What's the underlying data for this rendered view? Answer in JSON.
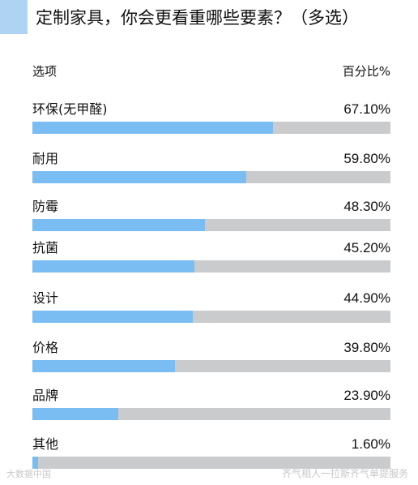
{
  "chart_data": {
    "type": "bar",
    "orientation": "horizontal",
    "title": "定制家具，你会更看重哪些要素？（多选）",
    "column_headers": {
      "label": "选项",
      "value": "百分比%"
    },
    "categories": [
      "环保(无甲醛)",
      "耐用",
      "防霉",
      "抗菌",
      "设计",
      "价格",
      "品牌",
      "其他"
    ],
    "values": [
      67.1,
      59.8,
      48.3,
      45.2,
      44.9,
      39.8,
      23.9,
      1.6
    ],
    "value_labels": [
      "67.10%",
      "59.80%",
      "48.30%",
      "45.20%",
      "44.90%",
      "39.80%",
      "23.90%",
      "1.60%"
    ],
    "xlim": [
      0,
      100
    ],
    "grid": false,
    "legend": "none",
    "colors": {
      "fill": "#79bdf3",
      "track": "#cacbcd",
      "accent": "#aed3f3"
    }
  },
  "watermark": {
    "left": "大数据中国",
    "right": "齐气相人一拉斯齐气单提服务"
  }
}
